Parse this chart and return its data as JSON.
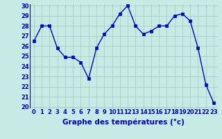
{
  "x": [
    0,
    1,
    2,
    3,
    4,
    5,
    6,
    7,
    8,
    9,
    10,
    11,
    12,
    13,
    14,
    15,
    16,
    17,
    18,
    19,
    20,
    21,
    22,
    23
  ],
  "y": [
    26.5,
    28.0,
    28.0,
    25.8,
    24.9,
    24.9,
    24.4,
    22.8,
    25.8,
    27.2,
    28.0,
    29.2,
    30.0,
    28.0,
    27.2,
    27.5,
    28.0,
    28.0,
    29.0,
    29.2,
    28.5,
    25.8,
    22.2,
    20.4
  ],
  "line_color": "#0000cc",
  "marker": "s",
  "marker_size": 2.5,
  "bg_color": "#c8eae4",
  "grid_color": "#a0c8c0",
  "xlabel": "Graphe des températures (°c)",
  "xlabel_color": "#0000cc",
  "ylim": [
    20,
    30
  ],
  "xlim": [
    -0.5,
    23.5
  ],
  "yticks": [
    20,
    21,
    22,
    23,
    24,
    25,
    26,
    27,
    28,
    29,
    30
  ],
  "xticks": [
    0,
    1,
    2,
    3,
    4,
    5,
    6,
    7,
    8,
    9,
    10,
    11,
    12,
    13,
    14,
    15,
    16,
    17,
    18,
    19,
    20,
    21,
    22,
    23
  ],
  "tick_label_fontsize": 6.0,
  "xlabel_fontsize": 7.5,
  "tick_color": "#0000cc",
  "line_width": 1.0
}
